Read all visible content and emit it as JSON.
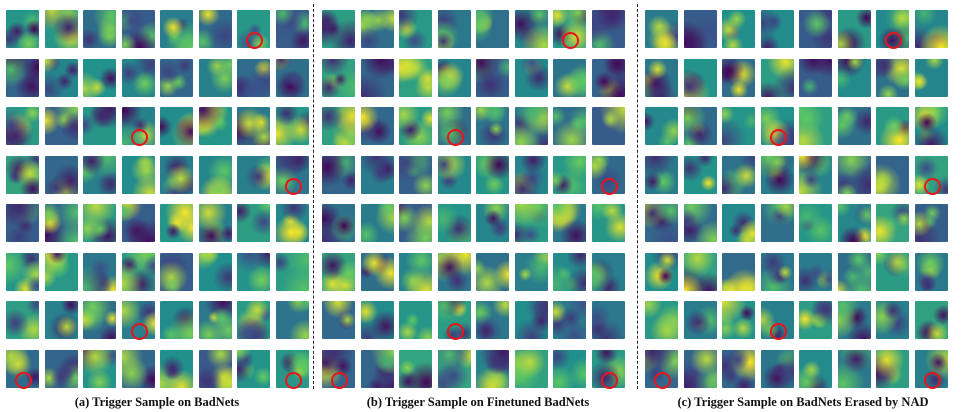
{
  "figure": {
    "grid": {
      "rows": 8,
      "cols": 8,
      "colormap": "viridis"
    },
    "marker_color": "#e8141b",
    "panels": [
      {
        "caption": "(a) Trigger Sample on BadNets",
        "markers": [
          [
            0,
            6
          ],
          [
            2,
            3
          ],
          [
            3,
            7
          ],
          [
            6,
            3
          ],
          [
            7,
            0
          ],
          [
            7,
            7
          ]
        ]
      },
      {
        "caption": "(b) Trigger Sample on Finetuned BadNets",
        "markers": [
          [
            0,
            6
          ],
          [
            2,
            3
          ],
          [
            3,
            7
          ],
          [
            6,
            3
          ],
          [
            7,
            0
          ],
          [
            7,
            7
          ]
        ]
      },
      {
        "caption": "(c) Trigger Sample on BadNets Erased by NAD",
        "markers": [
          [
            0,
            6
          ],
          [
            2,
            3
          ],
          [
            3,
            7
          ],
          [
            6,
            3
          ],
          [
            7,
            0
          ],
          [
            7,
            7
          ]
        ]
      }
    ]
  }
}
